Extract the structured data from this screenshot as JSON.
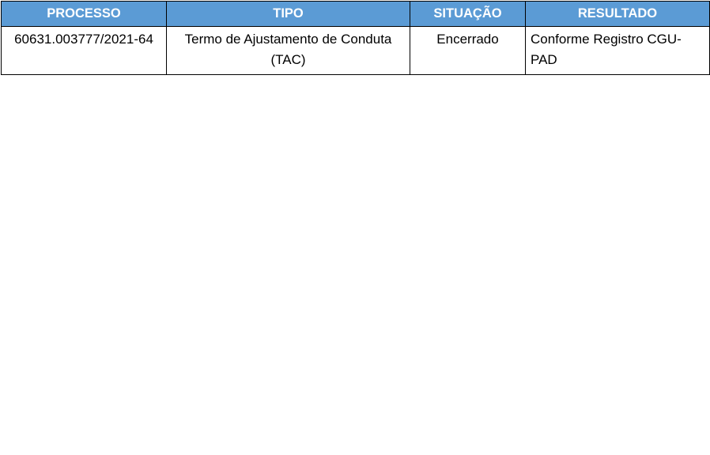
{
  "table": {
    "headers": [
      "PROCESSO",
      "TIPO",
      "SITUAÇÃO",
      "RESULTADO"
    ],
    "header_color": "#5b9bd5",
    "rows": [
      [
        "60631.003777/2021-64",
        "Termo de Ajustamento de Conduta (TAC)",
        "Encerrado",
        "Conforme Registro CGU-PAD"
      ]
    ]
  }
}
